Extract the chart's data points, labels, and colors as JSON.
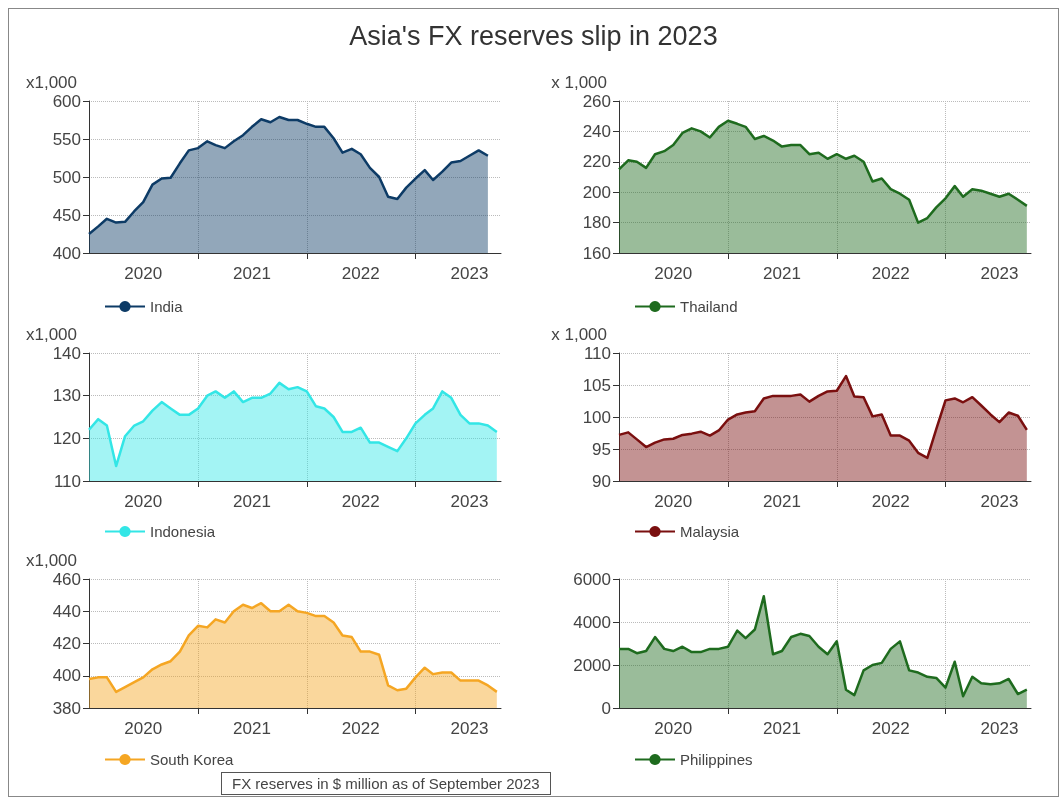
{
  "chart_data": [
    {
      "type": "area",
      "title": "Asia's FX reserves slip in 2023",
      "annotations": [
        "FX reserves in $ million as of September 2023"
      ],
      "ylabel": "x1,000",
      "grid": true,
      "legend": "bottom left",
      "x": [
        "2020-01",
        "2020-02",
        "2020-03",
        "2020-04",
        "2020-05",
        "2020-06",
        "2020-07",
        "2020-08",
        "2020-09",
        "2020-10",
        "2020-11",
        "2020-12",
        "2021-01",
        "2021-02",
        "2021-03",
        "2021-04",
        "2021-05",
        "2021-06",
        "2021-07",
        "2021-08",
        "2021-09",
        "2021-10",
        "2021-11",
        "2021-12",
        "2022-01",
        "2022-02",
        "2022-03",
        "2022-04",
        "2022-05",
        "2022-06",
        "2022-07",
        "2022-08",
        "2022-09",
        "2022-10",
        "2022-11",
        "2022-12",
        "2023-01",
        "2023-02",
        "2023-03",
        "2023-04",
        "2023-05",
        "2023-06",
        "2023-07",
        "2023-08",
        "2023-09"
      ],
      "xlim": [
        "2020-01-01",
        "2023-10-15"
      ],
      "xticks": [
        {
          "value": "2020-07-01",
          "label": "2020"
        },
        {
          "value": "2021-07-01",
          "label": "2021"
        },
        {
          "value": "2022-07-01",
          "label": "2022"
        },
        {
          "value": "2023-07-01",
          "label": "2023"
        },
        {
          "value": "2021-01-01",
          "label": null
        },
        {
          "value": "2022-01-01",
          "label": null
        },
        {
          "value": "2023-01-01",
          "label": null
        }
      ],
      "ylim": [
        400,
        600
      ],
      "yticks": [
        400,
        450,
        500,
        550,
        600
      ],
      "series": [
        {
          "name": "India",
          "color": "#0d3b66",
          "values": [
            425,
            435,
            445,
            440,
            441,
            455,
            467,
            490,
            498,
            499,
            518,
            535,
            538,
            547,
            542,
            538,
            547,
            555,
            566,
            576,
            572,
            579,
            575,
            575,
            570,
            566,
            566,
            551,
            532,
            537,
            530,
            512,
            500,
            474,
            471,
            486,
            498,
            509,
            496,
            507,
            519,
            521,
            528,
            535,
            528
          ]
        }
      ]
    },
    {
      "type": "area",
      "ylabel": "x 1,000",
      "grid": true,
      "legend": "bottom left",
      "x": [
        "2020-01",
        "2020-02",
        "2020-03",
        "2020-04",
        "2020-05",
        "2020-06",
        "2020-07",
        "2020-08",
        "2020-09",
        "2020-10",
        "2020-11",
        "2020-12",
        "2021-01",
        "2021-02",
        "2021-03",
        "2021-04",
        "2021-05",
        "2021-06",
        "2021-07",
        "2021-08",
        "2021-09",
        "2021-10",
        "2021-11",
        "2021-12",
        "2022-01",
        "2022-02",
        "2022-03",
        "2022-04",
        "2022-05",
        "2022-06",
        "2022-07",
        "2022-08",
        "2022-09",
        "2022-10",
        "2022-11",
        "2022-12",
        "2023-01",
        "2023-02",
        "2023-03",
        "2023-04",
        "2023-05",
        "2023-06",
        "2023-07",
        "2023-08",
        "2023-09",
        "2023-10"
      ],
      "xlim": [
        "2020-01-01",
        "2023-10-15"
      ],
      "xticks": [
        {
          "value": "2020-07-01",
          "label": "2020"
        },
        {
          "value": "2021-07-01",
          "label": "2021"
        },
        {
          "value": "2022-07-01",
          "label": "2022"
        },
        {
          "value": "2023-07-01",
          "label": "2023"
        },
        {
          "value": "2021-01-01",
          "label": null
        },
        {
          "value": "2022-01-01",
          "label": null
        },
        {
          "value": "2023-01-01",
          "label": null
        }
      ],
      "ylim": [
        160,
        260
      ],
      "yticks": [
        160,
        180,
        200,
        220,
        240,
        260
      ],
      "series": [
        {
          "name": "Thailand",
          "color": "#1e6b1e",
          "values": [
            215,
            221,
            220,
            216,
            225,
            227,
            231,
            239,
            242,
            240,
            236,
            243,
            247,
            245,
            243,
            235,
            237,
            234,
            230,
            231,
            231,
            225,
            226,
            222,
            225,
            222,
            224,
            220,
            207,
            209,
            202,
            199,
            195,
            180,
            183,
            190,
            196,
            204,
            197,
            202,
            201,
            199,
            197,
            199,
            195,
            191
          ]
        }
      ]
    },
    {
      "type": "area",
      "ylabel": "x1,000",
      "grid": true,
      "legend": "bottom left",
      "x": [
        "2020-01",
        "2020-02",
        "2020-03",
        "2020-04",
        "2020-05",
        "2020-06",
        "2020-07",
        "2020-08",
        "2020-09",
        "2020-10",
        "2020-11",
        "2020-12",
        "2021-01",
        "2021-02",
        "2021-03",
        "2021-04",
        "2021-05",
        "2021-06",
        "2021-07",
        "2021-08",
        "2021-09",
        "2021-10",
        "2021-11",
        "2021-12",
        "2022-01",
        "2022-02",
        "2022-03",
        "2022-04",
        "2022-05",
        "2022-06",
        "2022-07",
        "2022-08",
        "2022-09",
        "2022-10",
        "2022-11",
        "2022-12",
        "2023-01",
        "2023-02",
        "2023-03",
        "2023-04",
        "2023-05",
        "2023-06",
        "2023-07",
        "2023-08",
        "2023-09",
        "2023-10"
      ],
      "xlim": [
        "2020-01-01",
        "2023-10-15"
      ],
      "xticks": [
        {
          "value": "2020-07-01",
          "label": "2020"
        },
        {
          "value": "2021-07-01",
          "label": "2021"
        },
        {
          "value": "2022-07-01",
          "label": "2022"
        },
        {
          "value": "2023-07-01",
          "label": "2023"
        },
        {
          "value": "2021-01-01",
          "label": null
        },
        {
          "value": "2022-01-01",
          "label": null
        },
        {
          "value": "2023-01-01",
          "label": null
        }
      ],
      "ylim": [
        110,
        140
      ],
      "yticks": [
        110,
        120,
        130,
        140
      ],
      "series": [
        {
          "name": "Indonesia",
          "color": "#33e6e6",
          "values": [
            122,
            124.5,
            123,
            113.5,
            120.5,
            123,
            124,
            126.5,
            128.5,
            127,
            125.5,
            125.5,
            127,
            130,
            131,
            129.5,
            131,
            128.5,
            129.5,
            129.5,
            130.5,
            133,
            131.5,
            132,
            131,
            127.5,
            127,
            125,
            121.5,
            121.5,
            122.5,
            119,
            119,
            118,
            117,
            120,
            123.5,
            125.5,
            127,
            131,
            129.5,
            125.5,
            123.5,
            123.5,
            123,
            121.5
          ]
        }
      ]
    },
    {
      "type": "area",
      "ylabel": "x 1,000",
      "grid": true,
      "legend": "bottom left",
      "x": [
        "2020-01",
        "2020-02",
        "2020-03",
        "2020-04",
        "2020-05",
        "2020-06",
        "2020-07",
        "2020-08",
        "2020-09",
        "2020-10",
        "2020-11",
        "2020-12",
        "2021-01",
        "2021-02",
        "2021-03",
        "2021-04",
        "2021-05",
        "2021-06",
        "2021-07",
        "2021-08",
        "2021-09",
        "2021-10",
        "2021-11",
        "2021-12",
        "2022-01",
        "2022-02",
        "2022-03",
        "2022-04",
        "2022-05",
        "2022-06",
        "2022-07",
        "2022-08",
        "2022-09",
        "2022-10",
        "2022-11",
        "2022-12",
        "2023-01",
        "2023-02",
        "2023-03",
        "2023-04",
        "2023-05",
        "2023-06",
        "2023-07",
        "2023-08",
        "2023-09",
        "2023-10"
      ],
      "xlim": [
        "2020-01-01",
        "2023-10-15"
      ],
      "xticks": [
        {
          "value": "2020-07-01",
          "label": "2020"
        },
        {
          "value": "2021-07-01",
          "label": "2021"
        },
        {
          "value": "2022-07-01",
          "label": "2022"
        },
        {
          "value": "2023-07-01",
          "label": "2023"
        },
        {
          "value": "2021-01-01",
          "label": null
        },
        {
          "value": "2022-01-01",
          "label": null
        },
        {
          "value": "2023-01-01",
          "label": null
        }
      ],
      "ylim": [
        90,
        110
      ],
      "yticks": [
        90,
        95,
        100,
        105,
        110
      ],
      "series": [
        {
          "name": "Malaysia",
          "color": "#7a0f0f",
          "values": [
            97.2,
            97.6,
            96.5,
            95.3,
            96,
            96.5,
            96.6,
            97.2,
            97.4,
            97.7,
            97.1,
            97.9,
            99.6,
            100.4,
            100.7,
            100.9,
            102.9,
            103.3,
            103.3,
            103.3,
            103.5,
            102.4,
            103.3,
            104,
            104.1,
            106.4,
            103.2,
            103.1,
            100.1,
            100.4,
            97.1,
            97.1,
            96.3,
            94.4,
            93.6,
            98.1,
            102.6,
            102.9,
            102.3,
            103.1,
            101.8,
            100.4,
            99.2,
            100.7,
            100.2,
            98
          ]
        }
      ]
    },
    {
      "type": "area",
      "ylabel": "x1,000",
      "grid": true,
      "legend": "bottom left",
      "x": [
        "2020-01",
        "2020-02",
        "2020-03",
        "2020-04",
        "2020-05",
        "2020-06",
        "2020-07",
        "2020-08",
        "2020-09",
        "2020-10",
        "2020-11",
        "2020-12",
        "2021-01",
        "2021-02",
        "2021-03",
        "2021-04",
        "2021-05",
        "2021-06",
        "2021-07",
        "2021-08",
        "2021-09",
        "2021-10",
        "2021-11",
        "2021-12",
        "2022-01",
        "2022-02",
        "2022-03",
        "2022-04",
        "2022-05",
        "2022-06",
        "2022-07",
        "2022-08",
        "2022-09",
        "2022-10",
        "2022-11",
        "2022-12",
        "2023-01",
        "2023-02",
        "2023-03",
        "2023-04",
        "2023-05",
        "2023-06",
        "2023-07",
        "2023-08",
        "2023-09",
        "2023-10"
      ],
      "xlim": [
        "2020-01-01",
        "2023-10-15"
      ],
      "xticks": [
        {
          "value": "2020-07-01",
          "label": "2020"
        },
        {
          "value": "2021-07-01",
          "label": "2021"
        },
        {
          "value": "2022-07-01",
          "label": "2022"
        },
        {
          "value": "2023-07-01",
          "label": "2023"
        },
        {
          "value": "2021-01-01",
          "label": null
        },
        {
          "value": "2022-01-01",
          "label": null
        },
        {
          "value": "2023-01-01",
          "label": null
        }
      ],
      "ylim": [
        380,
        460
      ],
      "yticks": [
        380,
        400,
        420,
        440,
        460
      ],
      "series": [
        {
          "name": "South Korea",
          "color": "#f5a623",
          "values": [
            398,
            399,
            399,
            390,
            393,
            396,
            399,
            404,
            407,
            409,
            415,
            425,
            431,
            430,
            435,
            433,
            440,
            444,
            442,
            445,
            440,
            440,
            444,
            440,
            439,
            437,
            437,
            433,
            425,
            424,
            415,
            415,
            413,
            394,
            391,
            392,
            399,
            405,
            401,
            402,
            402,
            397,
            397,
            397,
            394,
            390
          ]
        }
      ]
    },
    {
      "type": "area",
      "grid": true,
      "legend": "bottom left",
      "x": [
        "2020-01",
        "2020-02",
        "2020-03",
        "2020-04",
        "2020-05",
        "2020-06",
        "2020-07",
        "2020-08",
        "2020-09",
        "2020-10",
        "2020-11",
        "2020-12",
        "2021-01",
        "2021-02",
        "2021-03",
        "2021-04",
        "2021-05",
        "2021-06",
        "2021-07",
        "2021-08",
        "2021-09",
        "2021-10",
        "2021-11",
        "2021-12",
        "2022-01",
        "2022-02",
        "2022-03",
        "2022-04",
        "2022-05",
        "2022-06",
        "2022-07",
        "2022-08",
        "2022-09",
        "2022-10",
        "2022-11",
        "2022-12",
        "2023-01",
        "2023-02",
        "2023-03",
        "2023-04",
        "2023-05",
        "2023-06",
        "2023-07",
        "2023-08",
        "2023-09",
        "2023-10"
      ],
      "xlim": [
        "2020-01-01",
        "2023-10-15"
      ],
      "xticks": [
        {
          "value": "2020-07-01",
          "label": "2020"
        },
        {
          "value": "2021-07-01",
          "label": "2021"
        },
        {
          "value": "2022-07-01",
          "label": "2022"
        },
        {
          "value": "2023-07-01",
          "label": "2023"
        },
        {
          "value": "2021-01-01",
          "label": null
        },
        {
          "value": "2022-01-01",
          "label": null
        },
        {
          "value": "2023-01-01",
          "label": null
        }
      ],
      "ylim": [
        0,
        6000
      ],
      "yticks": [
        0,
        2000,
        4000,
        6000
      ],
      "series": [
        {
          "name": "Philippines",
          "color": "#1e6b1e",
          "values": [
            2750,
            2750,
            2550,
            2650,
            3300,
            2750,
            2650,
            2850,
            2600,
            2600,
            2750,
            2750,
            2850,
            3600,
            3250,
            3650,
            5200,
            2500,
            2650,
            3300,
            3450,
            3350,
            2850,
            2500,
            3100,
            850,
            600,
            1750,
            2000,
            2100,
            2750,
            3100,
            1750,
            1650,
            1450,
            1400,
            950,
            2150,
            550,
            1450,
            1150,
            1100,
            1150,
            1350,
            650,
            850
          ]
        }
      ]
    }
  ]
}
